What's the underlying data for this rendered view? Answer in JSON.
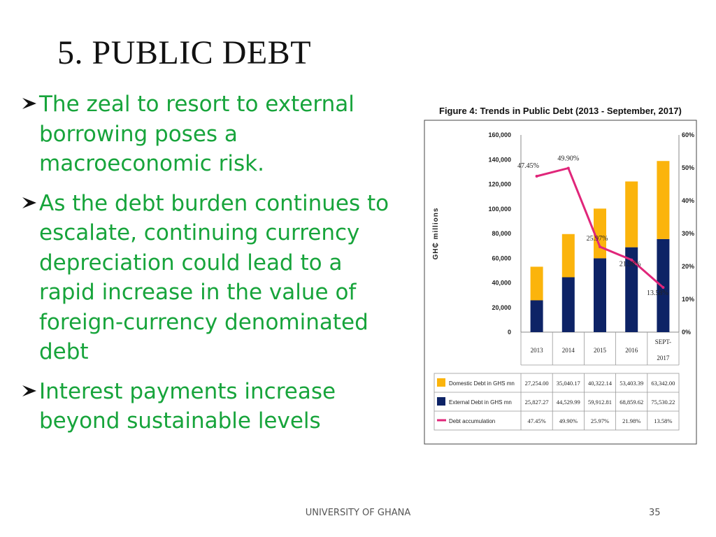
{
  "slide": {
    "title": "5. PUBLIC DEBT",
    "bullets": [
      "The zeal to resort to external borrowing poses a macroeconomic risk.",
      "As the debt burden continues to escalate, continuing currency depreciation could lead to a rapid increase in the value of foreign-currency denominated debt",
      "Interest payments increase beyond sustainable levels"
    ],
    "footer": "UNIVERSITY OF GHANA",
    "page_number": "35"
  },
  "colors": {
    "bullet_text": "#17a43b",
    "domestic": "#fbb40c",
    "external": "#0d2366",
    "accumulation": "#e0267a"
  },
  "chart_data": {
    "type": "bar",
    "title": "Figure 4: Trends in Public Debt (2013 - September, 2017)",
    "ylabel": "GH₵ millions",
    "categories": [
      "2013",
      "2014",
      "2015",
      "2016",
      "SEPT-2017"
    ],
    "ylim": [
      0,
      160000
    ],
    "yticks": [
      "0",
      "20,000",
      "40,000",
      "60,000",
      "80,000",
      "100,000",
      "120,000",
      "140,000",
      "160,000"
    ],
    "y2lim": [
      0,
      60
    ],
    "y2ticks": [
      "0%",
      "10%",
      "20%",
      "30%",
      "40%",
      "50%",
      "60%"
    ],
    "stacked": true,
    "series": [
      {
        "name": "Domestic Debt in GHS mn",
        "values": [
          27254.0,
          35040.17,
          40322.14,
          53403.39,
          63342.0
        ],
        "labels": [
          "27,254.00",
          "35,040.17",
          "40,322.14",
          "53,403.39",
          "63,342.00"
        ]
      },
      {
        "name": "External Debt in GHS mn",
        "values": [
          25827.27,
          44529.99,
          59912.81,
          68859.62,
          75530.22
        ],
        "labels": [
          "25,827.27",
          "44,529.99",
          "59,912.81",
          "68,859.62",
          "75,530.22"
        ]
      },
      {
        "name": "Debt accumulation",
        "type": "line",
        "axis": "secondary",
        "values": [
          47.45,
          49.9,
          25.97,
          21.98,
          13.58
        ],
        "labels": [
          "47.45%",
          "49.90%",
          "25.97%",
          "21.98%",
          "13.58%"
        ]
      }
    ]
  }
}
